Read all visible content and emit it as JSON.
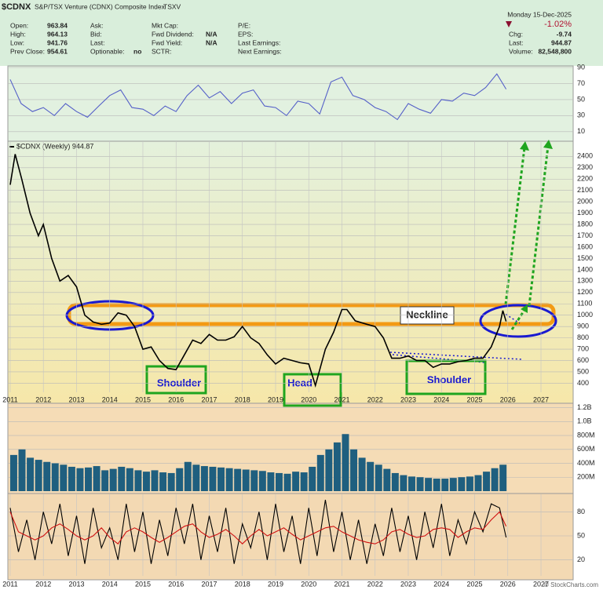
{
  "header": {
    "symbol": "$CDNX",
    "name": "S&P/TSX Venture (CDNX) Composite Index",
    "exchange": "TSXV",
    "date": "Monday 15-Dec-2025",
    "change_pct": "-1.02%",
    "columns": [
      [
        {
          "label": "Open:",
          "value": "963.84"
        },
        {
          "label": "High:",
          "value": "964.13"
        },
        {
          "label": "Low:",
          "value": "941.76"
        },
        {
          "label": "Prev Close:",
          "value": "954.61"
        }
      ],
      [
        {
          "label": "Ask:"
        },
        {
          "label": "Bid:"
        },
        {
          "label": "Last:"
        },
        {
          "label": "Optionable:",
          "value": "no"
        }
      ],
      [
        {
          "label": "Mkt Cap:"
        },
        {
          "label": "Fwd Dividend:",
          "value": "N/A"
        },
        {
          "label": "Fwd Yield:",
          "value": "N/A"
        },
        {
          "label": "SCTR:"
        }
      ],
      [
        {
          "label": "P/E:"
        },
        {
          "label": "EPS:"
        },
        {
          "label": "Last Earnings:"
        },
        {
          "label": "Next Earnings:"
        }
      ]
    ],
    "quote": [
      {
        "label": "Chg:",
        "value": "-9.74"
      },
      {
        "label": "Last:",
        "value": "944.87"
      },
      {
        "label": "Volume:",
        "value": "82,548,800"
      }
    ]
  },
  "footer": {
    "watermark": "© StockCharts.com"
  },
  "chart_data": [
    {
      "type": "line",
      "ylim": [
        0,
        90
      ],
      "yticks": [
        10,
        30,
        50,
        70,
        90
      ],
      "x": [
        2011,
        2011.33,
        2011.67,
        2012,
        2012.33,
        2012.67,
        2013,
        2013.33,
        2013.67,
        2014,
        2014.33,
        2014.67,
        2015,
        2015.33,
        2015.67,
        2016,
        2016.33,
        2016.67,
        2017,
        2017.33,
        2017.67,
        2018,
        2018.33,
        2018.67,
        2019,
        2019.33,
        2019.67,
        2020,
        2020.33,
        2020.67,
        2021,
        2021.33,
        2021.67,
        2022,
        2022.33,
        2022.67,
        2023,
        2023.33,
        2023.67,
        2024,
        2024.33,
        2024.67,
        2025,
        2025.33,
        2025.67,
        2025.95
      ],
      "xlim": [
        2010.93,
        2027.97
      ],
      "series": [
        {
          "color": "#5560c8",
          "values": [
            75,
            45,
            35,
            40,
            30,
            45,
            35,
            28,
            42,
            55,
            62,
            40,
            38,
            30,
            42,
            35,
            55,
            68,
            52,
            60,
            45,
            58,
            62,
            42,
            40,
            30,
            48,
            45,
            32,
            72,
            78,
            55,
            50,
            40,
            35,
            25,
            45,
            38,
            33,
            50,
            48,
            58,
            55,
            65,
            82,
            63
          ]
        }
      ]
    },
    {
      "type": "line",
      "ylim": [
        320,
        2520
      ],
      "yticks": [
        400,
        500,
        600,
        700,
        800,
        900,
        1000,
        1100,
        1200,
        1300,
        1400,
        1500,
        1600,
        1700,
        1800,
        1900,
        2000,
        2100,
        2200,
        2300,
        2400
      ],
      "xlim": [
        2010.93,
        2027.97
      ],
      "xticks": [
        2011,
        2012,
        2013,
        2014,
        2015,
        2016,
        2017,
        2018,
        2019,
        2020,
        2021,
        2022,
        2023,
        2024,
        2025,
        2026,
        2027
      ],
      "x": [
        2011,
        2011.15,
        2011.35,
        2011.6,
        2011.85,
        2012,
        2012.25,
        2012.5,
        2012.75,
        2013,
        2013.25,
        2013.5,
        2013.75,
        2014,
        2014.25,
        2014.5,
        2014.75,
        2015,
        2015.25,
        2015.5,
        2015.75,
        2016,
        2016.25,
        2016.5,
        2016.75,
        2017,
        2017.25,
        2017.5,
        2017.75,
        2018,
        2018.25,
        2018.5,
        2018.75,
        2019,
        2019.25,
        2019.5,
        2019.75,
        2020,
        2020.2,
        2020.5,
        2020.75,
        2021,
        2021.15,
        2021.4,
        2021.75,
        2022,
        2022.25,
        2022.5,
        2022.75,
        2023,
        2023.25,
        2023.5,
        2023.75,
        2024,
        2024.25,
        2024.5,
        2024.75,
        2025,
        2025.25,
        2025.5,
        2025.75,
        2025.85,
        2025.95
      ],
      "series": [
        {
          "name": "$CDNX (Weekly) 944.87",
          "color": "#000000",
          "values": [
            2150,
            2420,
            2200,
            1900,
            1700,
            1800,
            1500,
            1300,
            1350,
            1250,
            1000,
            940,
            920,
            930,
            1020,
            1000,
            900,
            700,
            720,
            600,
            530,
            520,
            650,
            780,
            750,
            830,
            780,
            780,
            810,
            900,
            800,
            750,
            650,
            570,
            620,
            600,
            580,
            570,
            380,
            700,
            850,
            1050,
            1050,
            950,
            920,
            900,
            800,
            620,
            620,
            640,
            600,
            600,
            540,
            570,
            570,
            590,
            600,
            620,
            620,
            720,
            900,
            1040,
            945
          ]
        }
      ],
      "annotations": [
        "Neckline",
        "Shoulder",
        "Head",
        "Shoulder"
      ]
    },
    {
      "type": "bar",
      "ylim": [
        0,
        1240000000
      ],
      "color": "#1f5f7f",
      "yticks": [
        {
          "value": 200000000,
          "label": "200M"
        },
        {
          "value": 400000000,
          "label": "400M"
        },
        {
          "value": 600000000,
          "label": "600M"
        },
        {
          "value": 800000000,
          "label": "800M"
        },
        {
          "value": 1000000000,
          "label": "1.0B"
        },
        {
          "value": 1200000000,
          "label": "1.2B"
        }
      ],
      "xlim": [
        2010.93,
        2027.97
      ],
      "x": [
        2011,
        2011.25,
        2011.5,
        2011.75,
        2012,
        2012.25,
        2012.5,
        2012.75,
        2013,
        2013.25,
        2013.5,
        2013.75,
        2014,
        2014.25,
        2014.5,
        2014.75,
        2015,
        2015.25,
        2015.5,
        2015.75,
        2016,
        2016.25,
        2016.5,
        2016.75,
        2017,
        2017.25,
        2017.5,
        2017.75,
        2018,
        2018.25,
        2018.5,
        2018.75,
        2019,
        2019.25,
        2019.5,
        2019.75,
        2020,
        2020.25,
        2020.5,
        2020.75,
        2021,
        2021.25,
        2021.5,
        2021.75,
        2022,
        2022.25,
        2022.5,
        2022.75,
        2023,
        2023.25,
        2023.5,
        2023.75,
        2024,
        2024.25,
        2024.5,
        2024.75,
        2025,
        2025.25,
        2025.5,
        2025.75
      ],
      "values": [
        520000000,
        600000000,
        480000000,
        450000000,
        420000000,
        400000000,
        380000000,
        350000000,
        330000000,
        340000000,
        360000000,
        300000000,
        320000000,
        350000000,
        330000000,
        300000000,
        280000000,
        300000000,
        270000000,
        260000000,
        330000000,
        420000000,
        380000000,
        360000000,
        350000000,
        340000000,
        330000000,
        320000000,
        310000000,
        300000000,
        290000000,
        270000000,
        260000000,
        250000000,
        280000000,
        270000000,
        350000000,
        520000000,
        600000000,
        700000000,
        820000000,
        600000000,
        480000000,
        420000000,
        380000000,
        320000000,
        260000000,
        230000000,
        210000000,
        200000000,
        190000000,
        180000000,
        180000000,
        190000000,
        200000000,
        210000000,
        230000000,
        280000000,
        330000000,
        380000000
      ]
    },
    {
      "type": "line",
      "ylim": [
        0,
        100
      ],
      "yticks": [
        20,
        50,
        80
      ],
      "xlim": [
        2010.93,
        2027.97
      ],
      "xticks": [
        2011,
        2012,
        2013,
        2014,
        2015,
        2016,
        2017,
        2018,
        2019,
        2020,
        2021,
        2022,
        2023,
        2024,
        2025,
        2026,
        2027
      ],
      "x": [
        2011,
        2011.25,
        2011.5,
        2011.75,
        2012,
        2012.25,
        2012.5,
        2012.75,
        2013,
        2013.25,
        2013.5,
        2013.75,
        2014,
        2014.25,
        2014.5,
        2014.75,
        2015,
        2015.25,
        2015.5,
        2015.75,
        2016,
        2016.25,
        2016.5,
        2016.75,
        2017,
        2017.25,
        2017.5,
        2017.75,
        2018,
        2018.25,
        2018.5,
        2018.75,
        2019,
        2019.25,
        2019.5,
        2019.75,
        2020,
        2020.25,
        2020.5,
        2020.75,
        2021,
        2021.25,
        2021.5,
        2021.75,
        2022,
        2022.25,
        2022.5,
        2022.75,
        2023,
        2023.25,
        2023.5,
        2023.75,
        2024,
        2024.25,
        2024.5,
        2024.75,
        2025,
        2025.25,
        2025.5,
        2025.75,
        2025.95
      ],
      "series": [
        {
          "color": "#000000",
          "values": [
            85,
            30,
            70,
            20,
            80,
            40,
            90,
            25,
            75,
            15,
            85,
            35,
            60,
            20,
            90,
            30,
            80,
            15,
            70,
            25,
            85,
            40,
            90,
            20,
            75,
            30,
            85,
            15,
            65,
            35,
            80,
            20,
            90,
            30,
            75,
            15,
            85,
            25,
            95,
            30,
            80,
            20,
            70,
            15,
            65,
            25,
            85,
            30,
            75,
            20,
            80,
            35,
            90,
            25,
            70,
            40,
            80,
            55,
            90,
            85,
            48
          ]
        },
        {
          "color": "#d01010",
          "values": [
            80,
            55,
            50,
            45,
            50,
            60,
            65,
            58,
            50,
            45,
            50,
            60,
            48,
            40,
            55,
            60,
            55,
            48,
            42,
            48,
            55,
            62,
            65,
            55,
            48,
            52,
            58,
            50,
            40,
            50,
            58,
            50,
            55,
            60,
            52,
            45,
            50,
            55,
            60,
            62,
            55,
            50,
            45,
            42,
            40,
            45,
            55,
            58,
            52,
            48,
            50,
            58,
            60,
            58,
            48,
            55,
            60,
            58,
            70,
            80,
            62
          ]
        }
      ]
    }
  ]
}
